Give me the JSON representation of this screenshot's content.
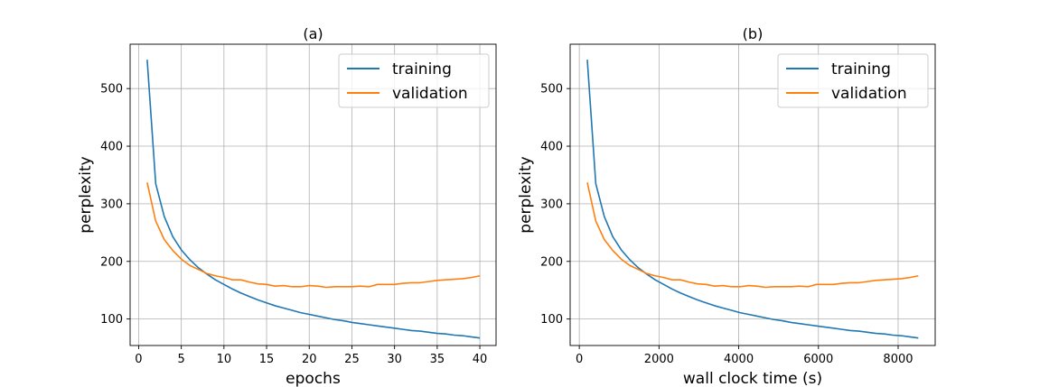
{
  "colors": {
    "training": "#1f77b4",
    "validation": "#ff7f0e",
    "grid": "#b0b0b0",
    "axis": "#000000"
  },
  "chart_data": [
    {
      "type": "line",
      "title": "(a)",
      "xlabel": "epochs",
      "ylabel": "perplexity",
      "xlim": [
        -1,
        41.9
      ],
      "ylim": [
        54,
        577
      ],
      "xticks": [
        0,
        5,
        10,
        15,
        20,
        25,
        30,
        35,
        40
      ],
      "yticks": [
        100,
        200,
        300,
        400,
        500
      ],
      "grid": true,
      "legend": "top-right",
      "x": [
        1,
        2,
        3,
        4,
        5,
        6,
        7,
        8,
        9,
        10,
        11,
        12,
        13,
        14,
        15,
        16,
        17,
        18,
        19,
        20,
        21,
        22,
        23,
        24,
        25,
        26,
        27,
        28,
        29,
        30,
        31,
        32,
        33,
        34,
        35,
        36,
        37,
        38,
        39,
        40
      ],
      "series": [
        {
          "name": "training",
          "values": [
            550,
            335,
            278,
            243,
            220,
            203,
            189,
            178,
            168,
            160,
            152,
            145,
            139,
            133,
            128,
            123,
            119,
            115,
            111,
            108,
            105,
            102,
            99,
            97,
            94,
            92,
            90,
            88,
            86,
            84,
            82,
            80,
            79,
            77,
            75,
            74,
            72,
            71,
            69,
            67
          ]
        },
        {
          "name": "validation",
          "values": [
            337,
            270,
            238,
            219,
            204,
            193,
            186,
            179,
            175,
            172,
            168,
            168,
            164,
            161,
            160,
            157,
            158,
            156,
            156,
            158,
            157,
            155,
            156,
            156,
            156,
            157,
            156,
            160,
            160,
            160,
            162,
            163,
            163,
            165,
            167,
            168,
            169,
            170,
            172,
            175
          ]
        }
      ]
    },
    {
      "type": "line",
      "title": "(b)",
      "xlabel": "wall clock time (s)",
      "ylabel": "perplexity",
      "xlim": [
        -230,
        8930
      ],
      "ylim": [
        54,
        577
      ],
      "xticks": [
        0,
        2000,
        4000,
        6000,
        8000
      ],
      "yticks": [
        100,
        200,
        300,
        400,
        500
      ],
      "grid": true,
      "legend": "top-right",
      "x": [
        200,
        413,
        626,
        839,
        1052,
        1265,
        1478,
        1691,
        1904,
        2117,
        2330,
        2543,
        2756,
        2969,
        3182,
        3395,
        3608,
        3821,
        4034,
        4247,
        4460,
        4673,
        4886,
        5099,
        5312,
        5525,
        5738,
        5951,
        6164,
        6377,
        6590,
        6803,
        7016,
        7229,
        7442,
        7655,
        7868,
        8081,
        8294,
        8507
      ],
      "series": [
        {
          "name": "training",
          "values": [
            550,
            335,
            278,
            243,
            220,
            203,
            189,
            178,
            168,
            160,
            152,
            145,
            139,
            133,
            128,
            123,
            119,
            115,
            111,
            108,
            105,
            102,
            99,
            97,
            94,
            92,
            90,
            88,
            86,
            84,
            82,
            80,
            79,
            77,
            75,
            74,
            72,
            71,
            69,
            67
          ]
        },
        {
          "name": "validation",
          "values": [
            337,
            270,
            238,
            219,
            204,
            193,
            186,
            179,
            175,
            172,
            168,
            168,
            164,
            161,
            160,
            157,
            158,
            156,
            156,
            158,
            157,
            155,
            156,
            156,
            156,
            157,
            156,
            160,
            160,
            160,
            162,
            163,
            163,
            165,
            167,
            168,
            169,
            170,
            172,
            175
          ]
        }
      ]
    }
  ]
}
